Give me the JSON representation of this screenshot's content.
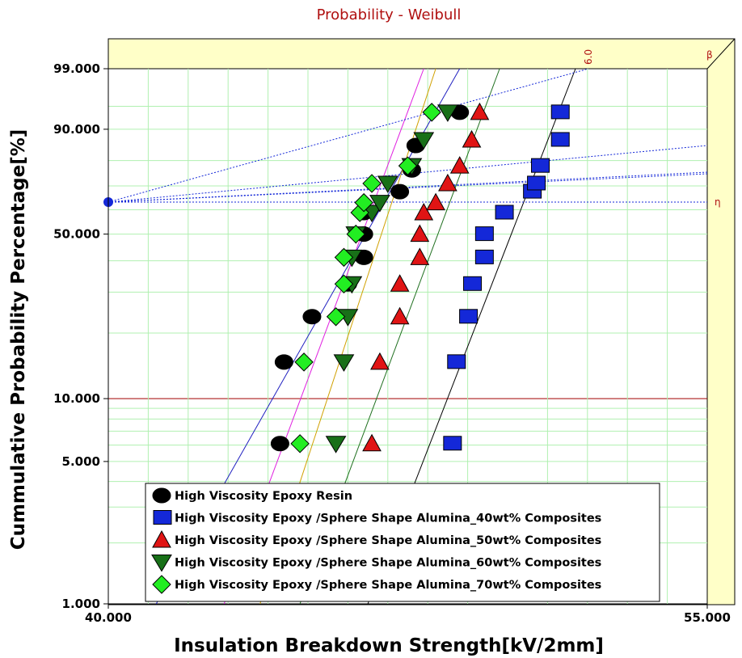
{
  "chart_data": {
    "type": "scatter",
    "title": "Probability - Weibull",
    "xlabel": "Insulation Breakdown Strength[kV/2mm]",
    "ylabel": "Cummulative Probability Percentage[%]",
    "xlim": [
      40.0,
      55.0
    ],
    "ylim": [
      1.0,
      99.0
    ],
    "x_ticks": [
      "40.000",
      "55.000"
    ],
    "y_ticks": [
      {
        "label": "1.000",
        "value": 1.0
      },
      {
        "label": "5.000",
        "value": 5.0
      },
      {
        "label": "10.000",
        "value": 10.0
      },
      {
        "label": "50.000",
        "value": 50.0
      },
      {
        "label": "90.000",
        "value": 90.0
      },
      {
        "label": "99.000",
        "value": 99.0
      }
    ],
    "y_scale": "weibull",
    "grid": true,
    "legend_position": "bottom-center",
    "annotations": {
      "beta": "β",
      "eta": "η",
      "beta_reference": "6.0"
    },
    "colors": {
      "plot_bg": "#ffffff",
      "side_panel": "#ffffc8",
      "grid": "#b0f0b0",
      "ten_percent_line": "#a00000",
      "eta_dot": "#1428d8"
    },
    "series": [
      {
        "name": "High Viscosity Epoxy Resin",
        "marker": "circle",
        "color": "#000000",
        "fit_color": "#2020c0",
        "fit": {
          "x1": 41.2,
          "x2": 48.8
        },
        "x": [
          44.3,
          44.4,
          45.1,
          46.0,
          46.4,
          46.4,
          46.4,
          47.3,
          47.6,
          47.7,
          48.8
        ],
        "y": [
          6.1,
          14.8,
          23.6,
          32.4,
          41.2,
          50.0,
          58.8,
          67.6,
          76.4,
          85.2,
          93.9
        ]
      },
      {
        "name": "High Viscosity Epoxy /Sphere Shape Alumina_40wt% Composites",
        "marker": "square",
        "color": "#1428d8",
        "fit_color": "#000000",
        "fit": {
          "x1": 46.5,
          "x2": 51.7
        },
        "x": [
          48.6,
          48.7,
          49.0,
          49.1,
          49.4,
          49.4,
          49.9,
          50.6,
          50.7,
          50.8,
          51.3,
          51.3
        ],
        "y": [
          6.1,
          14.8,
          23.6,
          32.4,
          41.2,
          50.0,
          58.8,
          67.6,
          71.0,
          78.0,
          87.0,
          93.9
        ]
      },
      {
        "name": "High Viscosity Epoxy /Sphere Shape Alumina_50wt% Composites",
        "marker": "triangle",
        "color": "#e01414",
        "fit_color": "#207020",
        "fit": {
          "x1": 44.8,
          "x2": 49.8
        },
        "x": [
          46.6,
          46.8,
          47.3,
          47.3,
          47.8,
          47.8,
          47.9,
          48.2,
          48.5,
          48.8,
          49.1,
          49.3
        ],
        "y": [
          6.1,
          14.8,
          23.6,
          32.4,
          41.2,
          50.0,
          58.8,
          63.0,
          71.0,
          78.0,
          87.0,
          93.9
        ]
      },
      {
        "name": "High Viscosity Epoxy /Sphere Shape Alumina_60wt% Composites",
        "marker": "triangle-down",
        "color": "#187018",
        "fit_color": "#d0a000",
        "fit": {
          "x1": 43.8,
          "x2": 48.2
        },
        "x": [
          45.7,
          45.9,
          46.0,
          46.1,
          46.1,
          46.2,
          46.6,
          46.8,
          47.0,
          47.6,
          47.9,
          48.5
        ],
        "y": [
          6.1,
          14.8,
          23.6,
          32.4,
          41.2,
          50.0,
          58.8,
          63.0,
          71.0,
          78.0,
          87.0,
          93.9
        ]
      },
      {
        "name": "High Viscosity Epoxy /Sphere Shape Alumina_70wt% Composites",
        "marker": "diamond",
        "color": "#22ee22",
        "fit_color": "#e020e0",
        "fit": {
          "x1": 42.9,
          "x2": 47.9
        },
        "x": [
          44.8,
          44.9,
          45.7,
          45.9,
          45.9,
          46.2,
          46.3,
          46.4,
          46.6,
          47.5,
          48.1
        ],
        "y": [
          6.1,
          14.8,
          23.6,
          32.4,
          41.2,
          50.0,
          58.8,
          63.0,
          71.0,
          78.0,
          93.9
        ]
      }
    ]
  }
}
